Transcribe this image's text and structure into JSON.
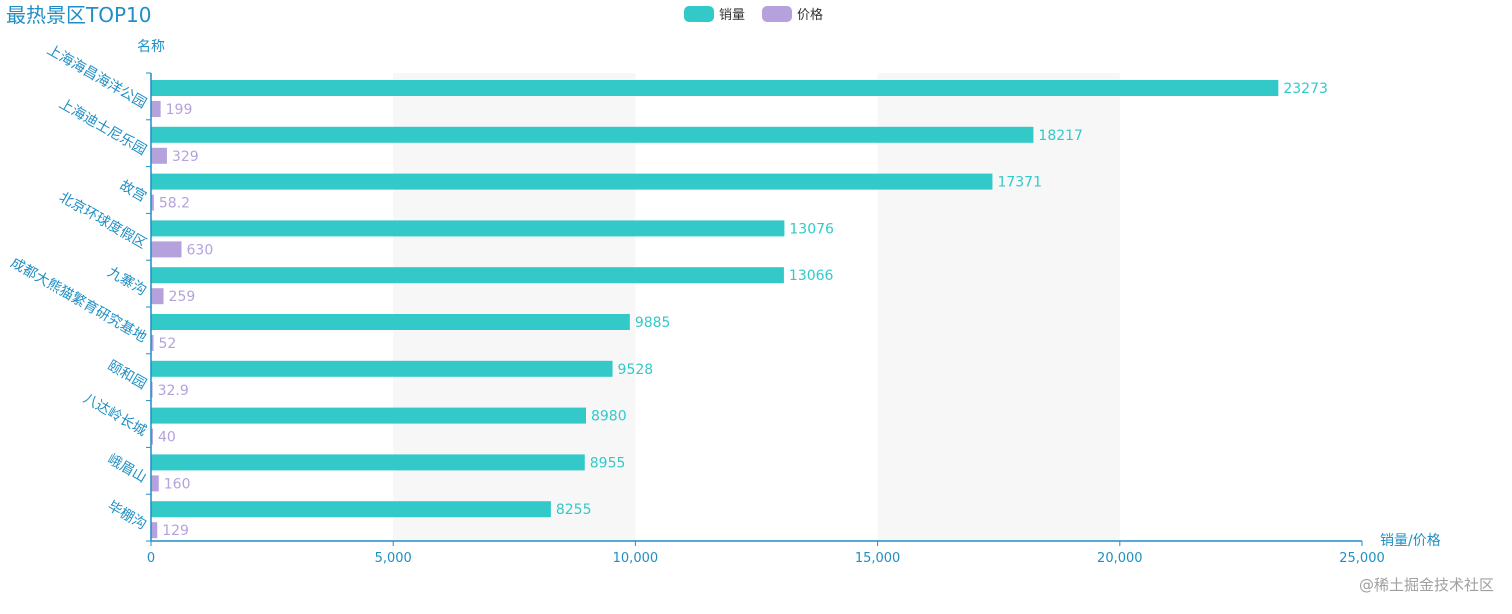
{
  "chart_data": {
    "type": "bar",
    "orientation": "horizontal",
    "title": "最热景区TOP10",
    "ylabel": "名称",
    "xlabel": "销量/价格",
    "categories": [
      "上海海昌海洋公园",
      "上海迪士尼乐园",
      "故宫",
      "北京环球度假区",
      "九寨沟",
      "成都大熊猫繁育研究基地",
      "颐和园",
      "八达岭长城",
      "峨眉山",
      "毕棚沟"
    ],
    "series": [
      {
        "name": "销量",
        "color": "#33c9c9",
        "values": [
          23273,
          18217,
          17371,
          13076,
          13066,
          9885,
          9528,
          8980,
          8955,
          8255
        ],
        "labels": [
          "23273",
          "18217",
          "17371",
          "13076",
          "13066",
          "9885",
          "9528",
          "8980",
          "8955",
          "8255"
        ]
      },
      {
        "name": "价格",
        "color": "#b5a2dc",
        "values": [
          199,
          329,
          58.2,
          630,
          259,
          52,
          32.9,
          40,
          160,
          129
        ],
        "labels": [
          "199",
          "329",
          "58.2",
          "630",
          "259",
          "52",
          "32.9",
          "40",
          "160",
          "129"
        ]
      }
    ],
    "xlim": [
      0,
      25000
    ],
    "xticks": [
      0,
      5000,
      10000,
      15000,
      20000,
      25000
    ],
    "xtick_labels": [
      "0",
      "5,000",
      "10,000",
      "15,000",
      "20,000",
      "25,000"
    ],
    "split_area": true,
    "legend_position": "top-center"
  },
  "watermark": "@稀土掘金技术社区",
  "colors": {
    "accent": "#1f8fc5",
    "split_area": "#f7f7f7"
  }
}
